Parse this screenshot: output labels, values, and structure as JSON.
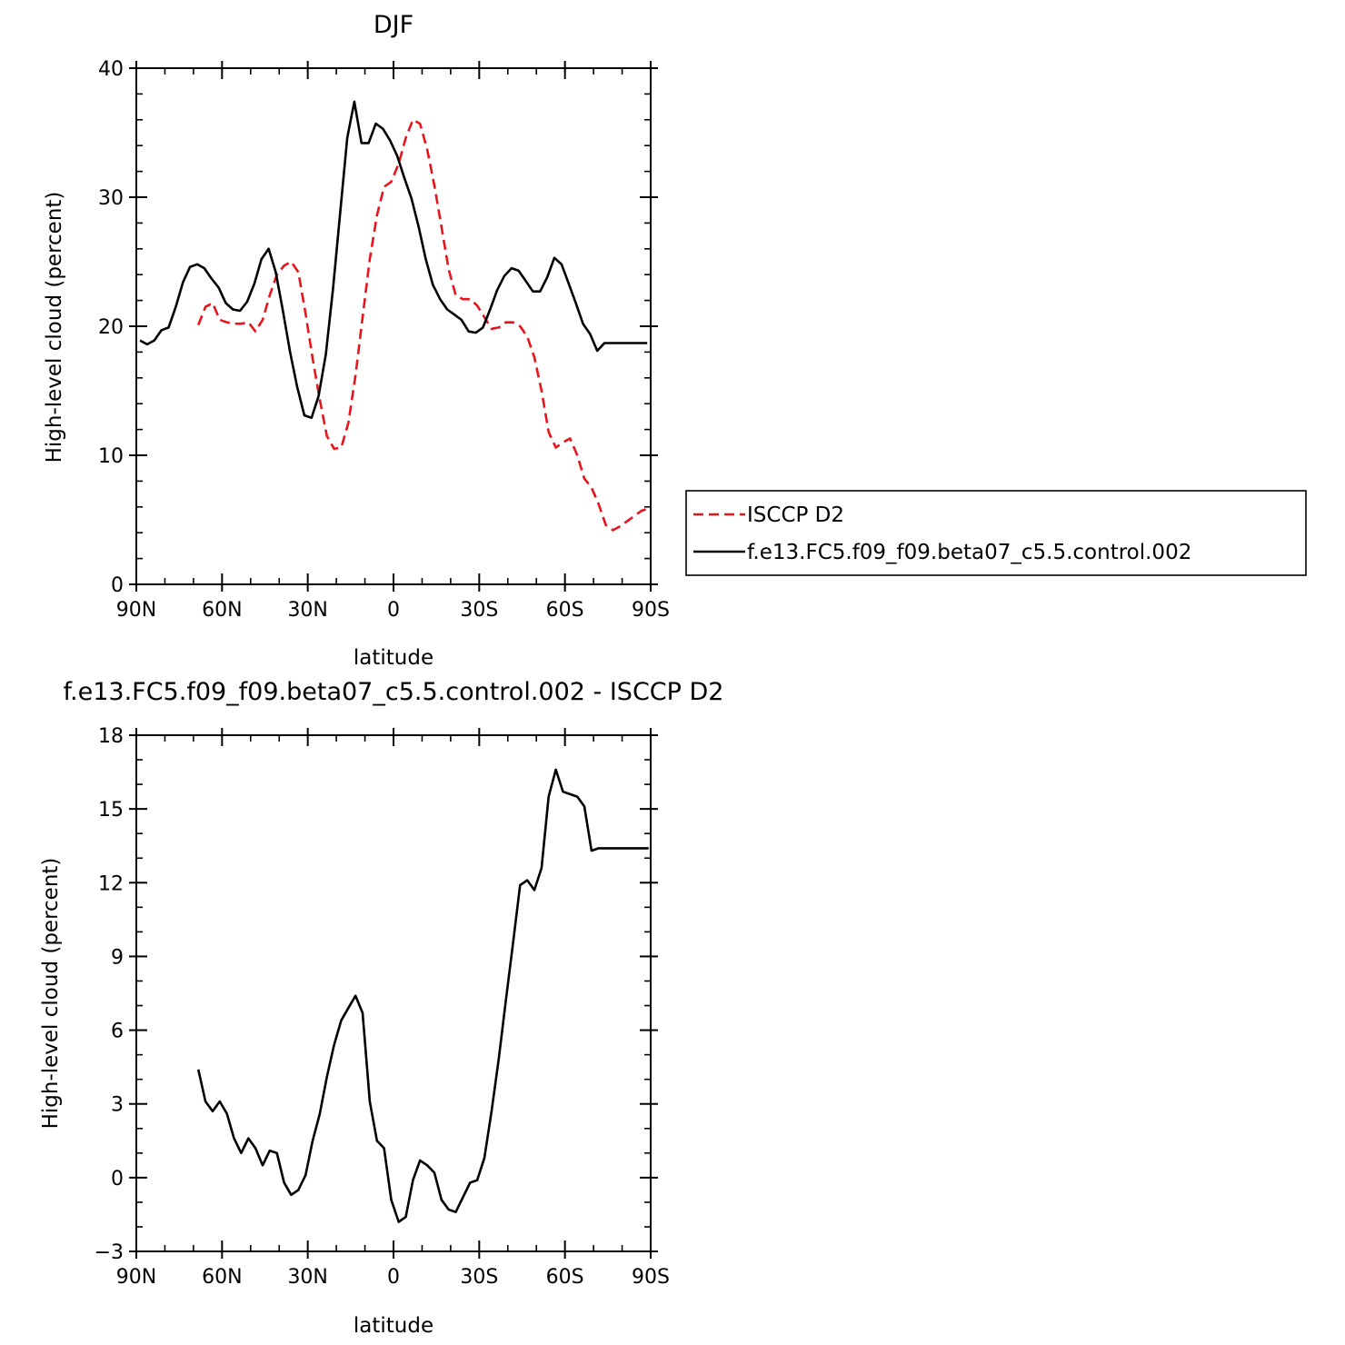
{
  "chart_data": [
    {
      "type": "line",
      "title": "DJF",
      "xlabel": "latitude",
      "ylabel": "High-level cloud (percent)",
      "xlim": [
        -90,
        90
      ],
      "ylim": [
        0,
        40
      ],
      "x_direction": "90N to 90S",
      "xticks": [
        {
          "value": -90,
          "label": "90N"
        },
        {
          "value": -60,
          "label": "60N"
        },
        {
          "value": -30,
          "label": "30N"
        },
        {
          "value": 0,
          "label": "0"
        },
        {
          "value": 30,
          "label": "30S"
        },
        {
          "value": 60,
          "label": "60S"
        },
        {
          "value": 90,
          "label": "90S"
        }
      ],
      "yticks": [
        {
          "value": 0,
          "label": "0"
        },
        {
          "value": 10,
          "label": "10"
        },
        {
          "value": 20,
          "label": "20"
        },
        {
          "value": 30,
          "label": "30"
        },
        {
          "value": 40,
          "label": "40"
        }
      ],
      "legend": {
        "placement": "right"
      },
      "series": [
        {
          "name": "ISCCP D2",
          "color": "#e8141b",
          "dash": true,
          "x": [
            -68.3,
            -65.8,
            -63.3,
            -60.8,
            -58.3,
            -55.8,
            -53.3,
            -50.8,
            -48.3,
            -45.8,
            -43.3,
            -40.8,
            -38.3,
            -35.8,
            -33.3,
            -30.8,
            -28.3,
            -25.8,
            -23.3,
            -20.8,
            -18.3,
            -15.8,
            -13.3,
            -10.8,
            -8.3,
            -5.8,
            -3.3,
            -0.8,
            1.8,
            4.3,
            6.8,
            9.3,
            11.8,
            14.3,
            16.8,
            19.3,
            21.8,
            24.3,
            26.8,
            29.3,
            31.8,
            34.3,
            36.8,
            39.3,
            41.8,
            44.3,
            46.8,
            49.3,
            51.8,
            54.3,
            56.8,
            59.3,
            61.8,
            64.3,
            66.8,
            69.3,
            71.8,
            74.3,
            76.8,
            79.3,
            81.8,
            84.3,
            86.8,
            89.3
          ],
          "y": [
            20.1,
            21.5,
            21.8,
            20.5,
            20.3,
            20.2,
            20.2,
            20.3,
            19.6,
            20.5,
            22.4,
            24.0,
            24.7,
            25.0,
            24.2,
            21.0,
            17.5,
            14.3,
            11.5,
            10.5,
            10.6,
            12.5,
            16.2,
            20.7,
            25.2,
            28.6,
            30.8,
            31.2,
            32.6,
            34.6,
            36.0,
            35.7,
            33.7,
            30.9,
            27.7,
            24.4,
            22.4,
            22.1,
            22.1,
            21.6,
            20.7,
            19.8,
            19.9,
            20.3,
            20.3,
            20.0,
            19.2,
            17.6,
            15.0,
            11.8,
            10.6,
            11.0,
            11.3,
            10.0,
            8.2,
            7.5,
            6.2,
            4.6,
            4.2,
            4.5,
            4.9,
            5.3,
            5.7,
            5.9
          ]
        },
        {
          "name": "f.e13.FC5.f09_f09.beta07_c5.5.control.002",
          "color": "#000000",
          "dash": false,
          "x": [
            -88.7,
            -86.2,
            -83.7,
            -81.2,
            -78.7,
            -76.2,
            -73.7,
            -71.2,
            -68.7,
            -66.2,
            -63.7,
            -61.2,
            -58.7,
            -56.2,
            -53.7,
            -51.2,
            -48.7,
            -46.2,
            -43.7,
            -41.2,
            -38.7,
            -36.2,
            -33.7,
            -31.2,
            -28.7,
            -26.2,
            -23.7,
            -21.2,
            -18.7,
            -16.2,
            -13.7,
            -11.2,
            -8.7,
            -6.2,
            -3.7,
            -1.2,
            1.3,
            3.8,
            6.3,
            8.8,
            11.3,
            13.8,
            16.3,
            18.8,
            21.3,
            23.8,
            26.3,
            28.8,
            31.3,
            33.8,
            36.3,
            38.8,
            41.3,
            43.8,
            46.3,
            48.8,
            51.3,
            53.8,
            56.3,
            58.8,
            61.3,
            63.8,
            66.3,
            68.8,
            71.3,
            73.8,
            76.3,
            78.8,
            81.3,
            83.8,
            86.3,
            88.8
          ],
          "y": [
            18.9,
            18.6,
            18.9,
            19.7,
            19.9,
            21.5,
            23.4,
            24.6,
            24.8,
            24.5,
            23.7,
            23.0,
            21.8,
            21.3,
            21.2,
            21.9,
            23.3,
            25.2,
            26.0,
            24.2,
            21.2,
            18.0,
            15.3,
            13.1,
            12.9,
            14.6,
            17.8,
            22.8,
            28.7,
            34.6,
            37.4,
            34.2,
            34.2,
            35.7,
            35.3,
            34.4,
            33.2,
            31.5,
            29.9,
            27.7,
            25.2,
            23.2,
            22.1,
            21.3,
            20.9,
            20.5,
            19.6,
            19.5,
            19.9,
            21.3,
            22.8,
            23.9,
            24.5,
            24.3,
            23.5,
            22.7,
            22.7,
            23.8,
            25.3,
            24.8,
            23.3,
            21.8,
            20.2,
            19.4,
            18.1,
            18.7,
            18.7,
            18.7,
            18.7,
            18.7,
            18.7,
            18.7
          ]
        }
      ]
    },
    {
      "type": "line",
      "title": "f.e13.FC5.f09_f09.beta07_c5.5.control.002 - ISCCP D2",
      "xlabel": "latitude",
      "ylabel": "High-level cloud (percent)",
      "xlim": [
        -90,
        90
      ],
      "ylim": [
        -3,
        18
      ],
      "x_direction": "90N to 90S",
      "xticks": [
        {
          "value": -90,
          "label": "90N"
        },
        {
          "value": -60,
          "label": "60N"
        },
        {
          "value": -30,
          "label": "30N"
        },
        {
          "value": 0,
          "label": "0"
        },
        {
          "value": 30,
          "label": "30S"
        },
        {
          "value": 60,
          "label": "60S"
        },
        {
          "value": 90,
          "label": "90S"
        }
      ],
      "yticks": [
        {
          "value": -3,
          "label": "−3"
        },
        {
          "value": 0,
          "label": "0"
        },
        {
          "value": 3,
          "label": "3"
        },
        {
          "value": 6,
          "label": "6"
        },
        {
          "value": 9,
          "label": "9"
        },
        {
          "value": 12,
          "label": "12"
        },
        {
          "value": 15,
          "label": "15"
        },
        {
          "value": 18,
          "label": "18"
        }
      ],
      "series": [
        {
          "color": "#000000",
          "dash": false,
          "x": [
            -68.3,
            -65.8,
            -63.3,
            -60.8,
            -58.3,
            -55.8,
            -53.3,
            -50.8,
            -48.3,
            -45.8,
            -43.3,
            -40.8,
            -38.3,
            -35.8,
            -33.3,
            -30.8,
            -28.3,
            -25.8,
            -23.3,
            -20.8,
            -18.3,
            -15.8,
            -13.3,
            -10.8,
            -8.3,
            -5.8,
            -3.3,
            -0.8,
            1.8,
            4.3,
            6.8,
            9.3,
            11.8,
            14.3,
            16.8,
            19.3,
            21.8,
            24.3,
            26.8,
            29.3,
            31.8,
            34.3,
            36.8,
            39.3,
            41.8,
            44.3,
            46.8,
            49.3,
            51.8,
            54.3,
            56.8,
            59.3,
            61.8,
            64.3,
            66.8,
            69.3,
            71.8,
            74.3,
            76.8,
            79.3,
            81.8,
            84.3,
            86.8,
            89.3
          ],
          "y": [
            4.4,
            3.1,
            2.7,
            3.1,
            2.6,
            1.6,
            1.0,
            1.6,
            1.2,
            0.5,
            1.1,
            1.0,
            -0.2,
            -0.7,
            -0.5,
            0.1,
            1.5,
            2.6,
            4.1,
            5.4,
            6.4,
            6.9,
            7.4,
            6.7,
            3.1,
            1.5,
            1.2,
            -0.9,
            -1.8,
            -1.6,
            -0.1,
            0.7,
            0.5,
            0.2,
            -0.9,
            -1.3,
            -1.4,
            -0.8,
            -0.2,
            -0.1,
            0.8,
            2.7,
            4.8,
            7.2,
            9.5,
            11.9,
            12.1,
            11.7,
            12.6,
            15.5,
            16.6,
            15.7,
            15.6,
            15.5,
            15.1,
            13.3,
            13.4,
            13.4,
            13.4,
            13.4,
            13.4,
            13.4,
            13.4,
            13.4
          ]
        }
      ]
    }
  ]
}
